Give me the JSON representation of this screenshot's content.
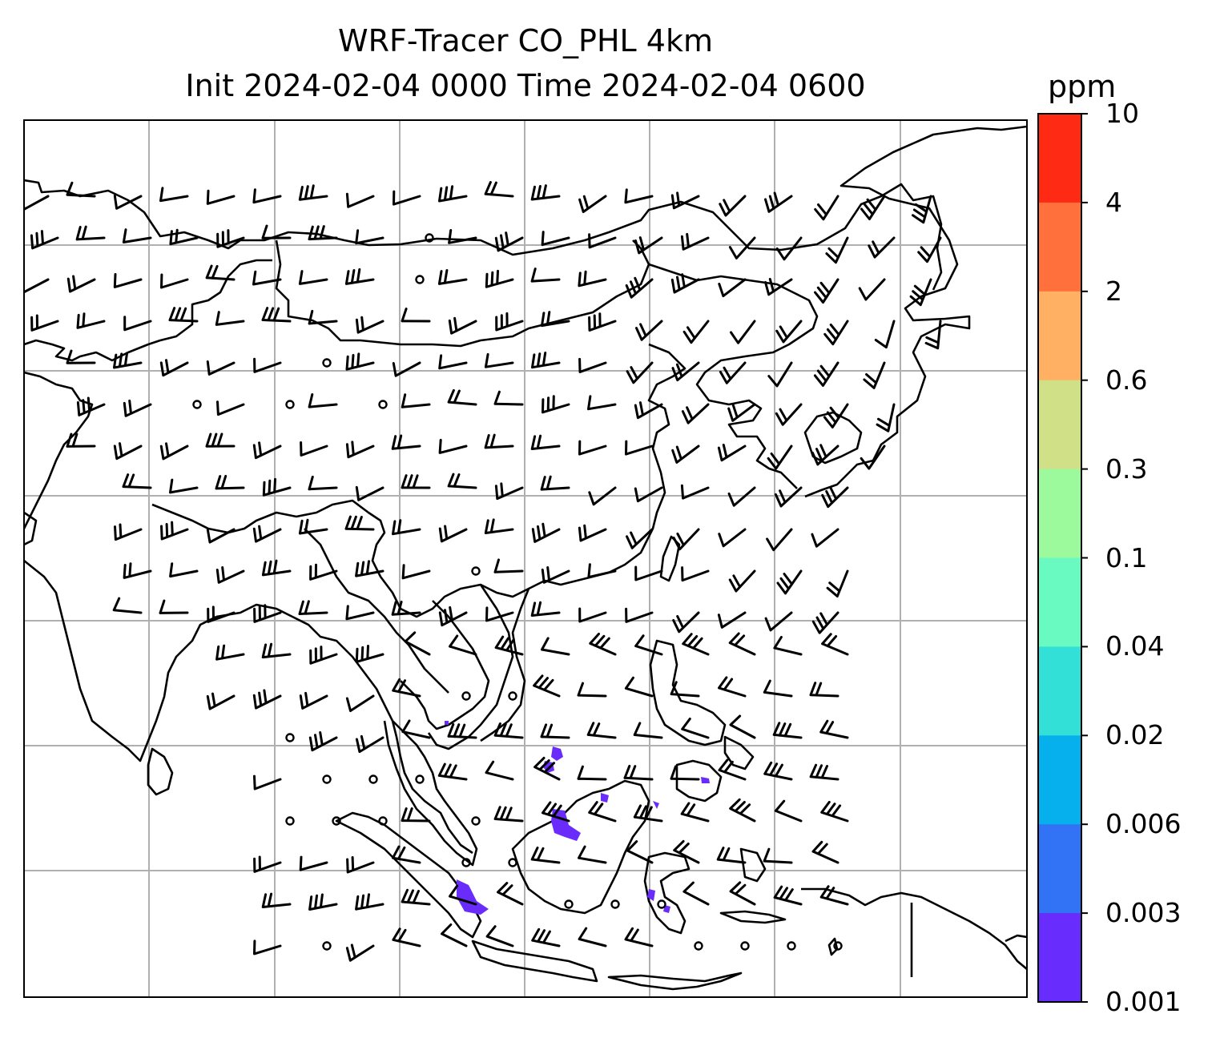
{
  "title_line1": "WRF-Tracer CO_PHL 4km",
  "title_line2": "Init 2024-02-04 0000 Time 2024-02-04 0600",
  "colorbar": {
    "unit": "ppm",
    "ticks": [
      "10",
      "4",
      "2",
      "0.6",
      "0.3",
      "0.1",
      "0.04",
      "0.02",
      "0.006",
      "0.003",
      "0.001"
    ],
    "colors": [
      "#ff2a14",
      "#ff703c",
      "#ffb062",
      "#d0e086",
      "#9cfa9c",
      "#68fac0",
      "#32e0d8",
      "#06b0ec",
      "#3272f4",
      "#682cfc"
    ]
  },
  "colors": {
    "frame": "#000000",
    "grid": "#b0b0b0",
    "coast": "#000000",
    "barb": "#000000",
    "tracer": "#6a2cfb"
  },
  "map": {
    "layers": [
      "coastlines",
      "gridlines",
      "wind-barbs",
      "calm-circles",
      "CO tracer concentration"
    ]
  }
}
